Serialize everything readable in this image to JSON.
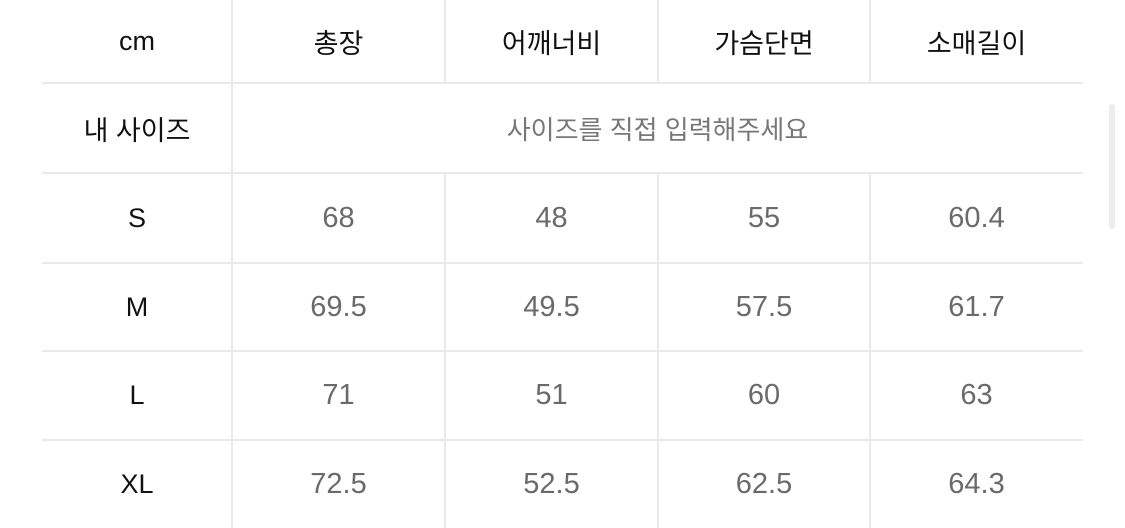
{
  "table": {
    "corner": "cm",
    "columns": [
      "총장",
      "어깨너비",
      "가슴단면",
      "소매길이"
    ],
    "my_size": {
      "label": "내 사이즈",
      "placeholder": "사이즈를 직접 입력해주세요"
    },
    "rows": [
      {
        "size": "S",
        "values": [
          "68",
          "48",
          "55",
          "60.4"
        ]
      },
      {
        "size": "M",
        "values": [
          "69.5",
          "49.5",
          "57.5",
          "61.7"
        ]
      },
      {
        "size": "L",
        "values": [
          "71",
          "51",
          "60",
          "63"
        ]
      },
      {
        "size": "XL",
        "values": [
          "72.5",
          "52.5",
          "62.5",
          "64.3"
        ]
      }
    ]
  }
}
